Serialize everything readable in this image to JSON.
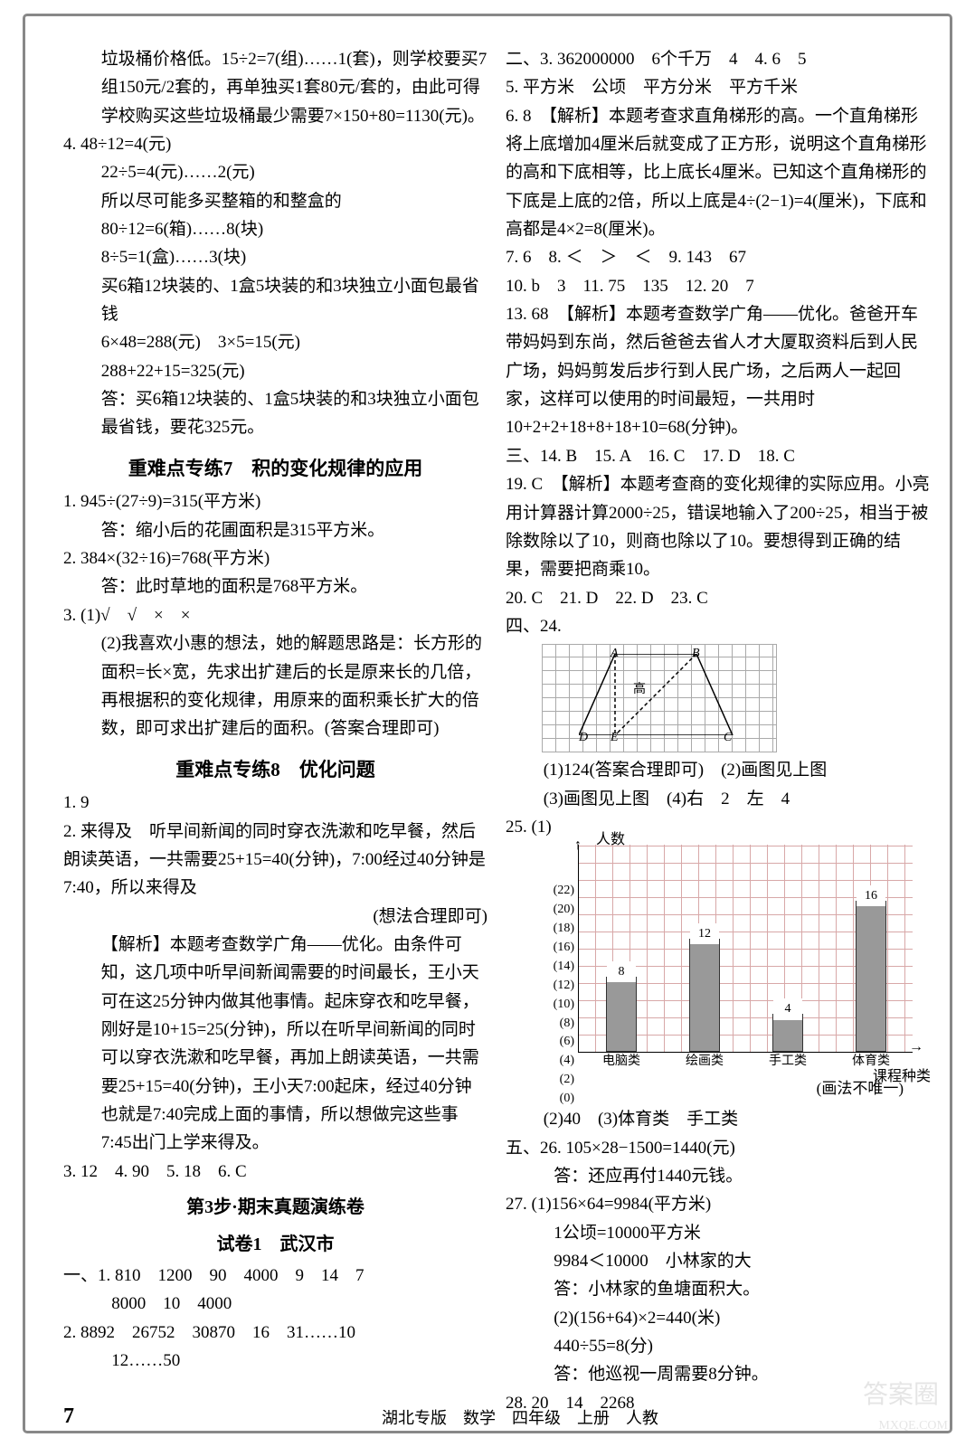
{
  "left": {
    "p1": "垃圾桶价格低。15÷2=7(组)……1(套)，则学校要买7组150元/2套的，再单独买1套80元/套的，由此可得学校购买这些垃圾桶最少需要7×150+80=1130(元)。",
    "q4_l1": "4. 48÷12=4(元)",
    "q4_l2": "22÷5=4(元)……2(元)",
    "q4_l3": "所以尽可能多买整箱的和整盒的",
    "q4_l4": "80÷12=6(箱)……8(块)",
    "q4_l5": "8÷5=1(盒)……3(块)",
    "q4_l6": "买6箱12块装的、1盒5块装的和3块独立小面包最省钱",
    "q4_l7": "6×48=288(元)　3×5=15(元)",
    "q4_l8": "288+22+15=325(元)",
    "q4_l9": "答：买6箱12块装的、1盒5块装的和3块独立小面包最省钱，要花325元。",
    "h7": "重难点专练7　积的变化规律的应用",
    "s7_1a": "1. 945÷(27÷9)=315(平方米)",
    "s7_1b": "答：缩小后的花圃面积是315平方米。",
    "s7_2a": "2. 384×(32÷16)=768(平方米)",
    "s7_2b": "答：此时草地的面积是768平方米。",
    "s7_3a": "3. (1)√　√　×　×",
    "s7_3b": "(2)我喜欢小惠的想法，她的解题思路是：长方形的面积=长×宽，先求出扩建后的长是原来长的几倍，再根据积的变化规律，用原来的面积乘长扩大的倍数，即可求出扩建后的面积。(答案合理即可)",
    "h8": "重难点专练8　优化问题",
    "s8_1": "1. 9",
    "s8_2a": "2. 来得及　听早间新闻的同时穿衣洗漱和吃早餐，然后朗读英语，一共需要25+15=40(分钟)，7:00经过40分钟是7:40，所以来得及",
    "s8_2b": "(想法合理即可)",
    "s8_2c": "【解析】本题考查数学广角——优化。由条件可知，这几项中听早间新闻需要的时间最长，王小天可在这25分钟内做其他事情。起床穿衣和吃早餐，刚好是10+15=25(分钟)，所以在听早间新闻的同时可以穿衣洗漱和吃早餐，再加上朗读英语，一共需要25+15=40(分钟)，王小天7:00起床，经过40分钟也就是7:40完成上面的事情，所以想做完这些事7:45出门上学来得及。",
    "s8_3": "3. 12　4. 90　5. 18　6. C",
    "hstep3": "第3步·期末真题演练卷",
    "hpaper1": "试卷1　武汉市",
    "p1_s1a": "一、1. 810　1200　90　4000　9　14　7",
    "p1_s1b": "8000　10　4000",
    "p1_s2a": "2. 8892　26752　30870　16　31……10",
    "p1_s2b": "12……50"
  },
  "right": {
    "r2_3": "二、3. 362000000　6个千万　4　4. 6　5",
    "r5": "5. 平方米　公顷　平方分米　平方千米",
    "r6a": "6. 8　【解析】本题考查求直角梯形的高。一个直角梯形将上底增加4厘米后就变成了正方形，说明这个直角梯形的高和下底相等，比上底长4厘米。已知这个直角梯形的下底是上底的2倍，所以上底是4÷(2−1)=4(厘米)，下底和高都是4×2=8(厘米)。",
    "r789": "7. 6　8. ＜　＞　＜　9. 143　67",
    "r101112": "10. b　3　11. 75　135　12. 20　7",
    "r13a": "13. 68　【解析】本题考查数学广角——优化。爸爸开车带妈妈到东尚，然后爸爸去省人才大厦取资料后到人民广场，妈妈剪发后步行到人民广场，之后两人一起回家，这样可以使用的时间最短，一共用时10+2+2+18+8+18+10=68(分钟)。",
    "r14_18": "三、14. B　15. A　16. C　17. D　18. C",
    "r19a": "19. C　【解析】本题考查商的变化规律的实际应用。小亮用计算器计算2000÷25，错误地输入了200÷25，相当于被除数除以了10，则商也除以了10。要想得到正确的结果，需要把商乘10。",
    "r20_23": "20. C　21. D　22. D　23. C",
    "r24_label": "四、24.",
    "fig_labels": {
      "A": "A",
      "B": "B",
      "C": "C",
      "D": "D",
      "E": "E",
      "high": "高"
    },
    "r24_1": "(1)124(答案合理即可)　(2)画图见上图",
    "r24_2": "(3)画图见上图　(4)右　2　左　4",
    "r25_label": "25. (1)",
    "chart": {
      "y_title": "人数",
      "x_title": "课程种类",
      "y_ticks": [
        0,
        2,
        4,
        6,
        8,
        10,
        12,
        14,
        16,
        18,
        20,
        22
      ],
      "y_max": 22,
      "categories": [
        "电脑类",
        "绘画类",
        "手工类",
        "体育类"
      ],
      "values": [
        8,
        12,
        4,
        16
      ],
      "bar_color": "#999999",
      "grid_color": "#d8a8a8",
      "note": "(画法不唯一)"
    },
    "r25_2": "(2)40　(3)体育类　手工类",
    "r26a": "五、26. 105×28−1500=1440(元)",
    "r26b": "答：还应再付1440元钱。",
    "r27a": "27. (1)156×64=9984(平方米)",
    "r27b": "1公顷=10000平方米",
    "r27c": "9984＜10000　小林家的大",
    "r27d": "答：小林家的鱼塘面积大。",
    "r27e": "(2)(156+64)×2=440(米)",
    "r27f": "440÷55=8(分)",
    "r27g": "答：他巡视一周需要8分钟。",
    "r28": "28. 20　14　2268"
  },
  "footer": {
    "page": "7",
    "text": "湖北专版　数学　四年级　上册　人教"
  },
  "watermark": "答案圈",
  "watermark2": "MXQE.COM"
}
